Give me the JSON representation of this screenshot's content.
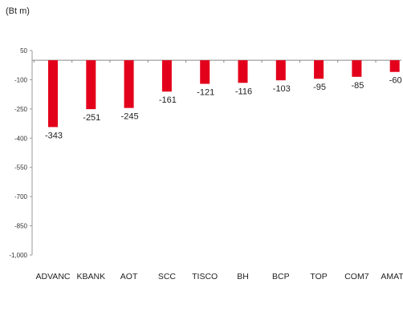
{
  "unit_label": "(Bt m)",
  "chart_data": {
    "type": "bar",
    "title": "",
    "xlabel": "",
    "ylabel": "(Bt m)",
    "ylim": [
      -1000,
      50
    ],
    "yticks": [
      50,
      -100,
      -250,
      -400,
      -550,
      -700,
      -850,
      -1000
    ],
    "ytick_labels": [
      "50",
      "-100",
      "-250",
      "-400",
      "-550",
      "-700",
      "-850",
      "-1,000"
    ],
    "categories": [
      "ADVANC",
      "KBANK",
      "AOT",
      "SCC",
      "TISCO",
      "BH",
      "BCP",
      "TOP",
      "COM7",
      "AMATA"
    ],
    "values": [
      -343,
      -251,
      -245,
      -161,
      -121,
      -116,
      -103,
      -95,
      -85,
      -60
    ],
    "value_labels": [
      "-343",
      "-251",
      "-245",
      "-161",
      "-121",
      "-116",
      "-103",
      "-95",
      "-85",
      "-60"
    ],
    "bar_color": "#e3001b",
    "grid": false,
    "legend": "none"
  }
}
